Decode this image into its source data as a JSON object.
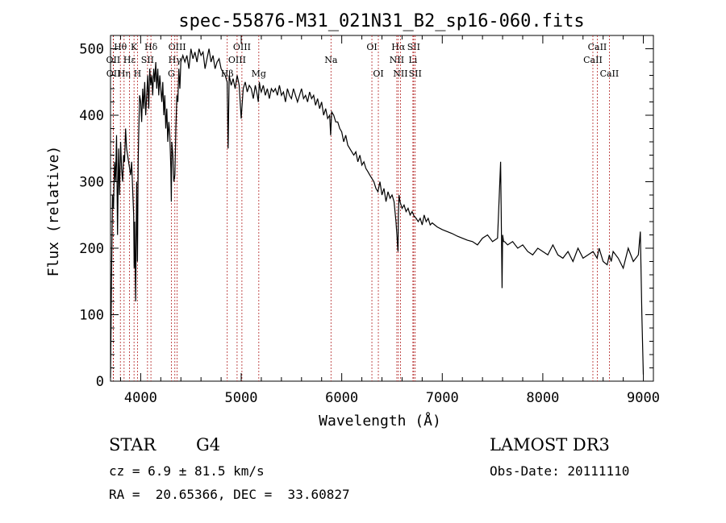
{
  "chart_data": {
    "type": "line",
    "title": "spec-55876-M31_021N31_B2_sp16-060.fits",
    "xlabel": "Wavelength (Å)",
    "ylabel": "Flux (relative)",
    "xlim": [
      3700,
      9100
    ],
    "ylim": [
      0,
      520
    ],
    "xticks": [
      4000,
      5000,
      6000,
      7000,
      8000,
      9000
    ],
    "yticks": [
      0,
      100,
      200,
      300,
      400,
      500
    ],
    "series": [
      {
        "name": "flux",
        "x": [
          3700,
          3710,
          3720,
          3730,
          3740,
          3750,
          3760,
          3770,
          3780,
          3790,
          3800,
          3810,
          3820,
          3830,
          3840,
          3850,
          3860,
          3870,
          3880,
          3890,
          3900,
          3910,
          3920,
          3930,
          3935,
          3940,
          3950,
          3960,
          3968,
          3975,
          3980,
          3990,
          4000,
          4010,
          4020,
          4030,
          4040,
          4050,
          4060,
          4070,
          4080,
          4090,
          4100,
          4110,
          4120,
          4130,
          4140,
          4150,
          4160,
          4170,
          4180,
          4190,
          4200,
          4210,
          4220,
          4230,
          4240,
          4250,
          4260,
          4270,
          4280,
          4290,
          4300,
          4305,
          4310,
          4320,
          4330,
          4340,
          4350,
          4360,
          4370,
          4380,
          4390,
          4400,
          4420,
          4440,
          4460,
          4480,
          4500,
          4520,
          4540,
          4560,
          4580,
          4600,
          4620,
          4640,
          4660,
          4680,
          4700,
          4720,
          4740,
          4760,
          4780,
          4800,
          4820,
          4840,
          4860,
          4870,
          4880,
          4900,
          4920,
          4940,
          4960,
          4980,
          5000,
          5020,
          5040,
          5060,
          5080,
          5100,
          5120,
          5140,
          5160,
          5170,
          5180,
          5190,
          5200,
          5220,
          5240,
          5260,
          5280,
          5300,
          5320,
          5340,
          5360,
          5380,
          5400,
          5420,
          5440,
          5460,
          5480,
          5500,
          5520,
          5540,
          5560,
          5580,
          5600,
          5620,
          5640,
          5660,
          5680,
          5700,
          5720,
          5740,
          5760,
          5780,
          5800,
          5820,
          5840,
          5860,
          5880,
          5890,
          5900,
          5920,
          5940,
          5960,
          5980,
          6000,
          6020,
          6040,
          6060,
          6080,
          6100,
          6120,
          6140,
          6160,
          6180,
          6200,
          6220,
          6240,
          6260,
          6280,
          6300,
          6320,
          6340,
          6360,
          6380,
          6400,
          6420,
          6440,
          6460,
          6480,
          6500,
          6520,
          6540,
          6560,
          6563,
          6570,
          6580,
          6600,
          6620,
          6640,
          6660,
          6680,
          6700,
          6720,
          6740,
          6760,
          6780,
          6800,
          6820,
          6840,
          6860,
          6880,
          6900,
          6950,
          7000,
          7050,
          7100,
          7150,
          7200,
          7250,
          7300,
          7350,
          7400,
          7450,
          7500,
          7550,
          7580,
          7595,
          7600,
          7610,
          7620,
          7650,
          7700,
          7750,
          7800,
          7850,
          7900,
          7950,
          8000,
          8050,
          8100,
          8150,
          8200,
          8250,
          8300,
          8350,
          8400,
          8450,
          8500,
          8540,
          8560,
          8600,
          8640,
          8662,
          8680,
          8700,
          8750,
          8800,
          8850,
          8900,
          8950,
          8970,
          8985,
          9000
        ],
        "values": [
          5,
          150,
          280,
          260,
          330,
          300,
          370,
          220,
          350,
          280,
          360,
          320,
          300,
          340,
          330,
          380,
          350,
          340,
          330,
          320,
          310,
          330,
          290,
          250,
          170,
          240,
          120,
          300,
          180,
          330,
          370,
          430,
          420,
          390,
          440,
          410,
          450,
          400,
          430,
          460,
          410,
          470,
          445,
          460,
          430,
          470,
          450,
          480,
          440,
          470,
          430,
          460,
          440,
          420,
          450,
          400,
          430,
          380,
          410,
          360,
          390,
          370,
          320,
          270,
          360,
          340,
          300,
          310,
          380,
          430,
          420,
          470,
          440,
          480,
          490,
          480,
          490,
          470,
          500,
          485,
          495,
          480,
          500,
          490,
          495,
          470,
          485,
          500,
          480,
          490,
          470,
          480,
          485,
          470,
          465,
          460,
          450,
          350,
          460,
          445,
          455,
          440,
          460,
          445,
          395,
          440,
          450,
          435,
          445,
          440,
          425,
          445,
          430,
          420,
          450,
          440,
          435,
          445,
          430,
          440,
          425,
          440,
          435,
          440,
          430,
          445,
          430,
          435,
          420,
          440,
          430,
          425,
          440,
          430,
          420,
          430,
          440,
          425,
          430,
          420,
          435,
          425,
          430,
          415,
          425,
          410,
          420,
          400,
          410,
          395,
          400,
          370,
          405,
          400,
          390,
          390,
          380,
          375,
          360,
          370,
          355,
          350,
          345,
          340,
          345,
          330,
          340,
          325,
          330,
          320,
          315,
          310,
          305,
          300,
          290,
          285,
          300,
          280,
          290,
          270,
          285,
          275,
          280,
          270,
          240,
          195,
          250,
          280,
          270,
          260,
          265,
          255,
          260,
          250,
          255,
          248,
          245,
          240,
          245,
          235,
          250,
          240,
          245,
          235,
          238,
          232,
          228,
          225,
          222,
          218,
          215,
          212,
          210,
          205,
          215,
          220,
          210,
          215,
          330,
          140,
          220,
          210,
          210,
          205,
          210,
          200,
          205,
          195,
          190,
          200,
          195,
          190,
          205,
          190,
          185,
          195,
          180,
          200,
          185,
          190,
          195,
          185,
          200,
          180,
          175,
          190,
          180,
          195,
          185,
          170,
          200,
          180,
          190,
          225,
          100,
          10
        ]
      }
    ],
    "lines": [
      {
        "label": "Hθ",
        "x": 3798,
        "row": 1
      },
      {
        "label": "OII",
        "x": 3727,
        "row": 2
      },
      {
        "label": "OII",
        "x": 3729,
        "row": 3
      },
      {
        "label": "Hη",
        "x": 3835,
        "row": 3
      },
      {
        "label": "K",
        "x": 3934,
        "row": 1
      },
      {
        "label": "Hε",
        "x": 3889,
        "row": 2
      },
      {
        "label": "H",
        "x": 3968,
        "row": 3
      },
      {
        "label": "SII",
        "x": 4068,
        "row": 2
      },
      {
        "label": "Hδ",
        "x": 4102,
        "row": 1
      },
      {
        "label": "OIII",
        "x": 4363,
        "row": 1
      },
      {
        "label": "Hγ",
        "x": 4340,
        "row": 2
      },
      {
        "label": "G",
        "x": 4305,
        "row": 3
      },
      {
        "label": "OIII",
        "x": 5007,
        "row": 1
      },
      {
        "label": "OIII",
        "x": 4959,
        "row": 2
      },
      {
        "label": "Hβ",
        "x": 4861,
        "row": 3
      },
      {
        "label": "Mg",
        "x": 5175,
        "row": 3
      },
      {
        "label": "Na",
        "x": 5893,
        "row": 2
      },
      {
        "label": "OI",
        "x": 6300,
        "row": 1
      },
      {
        "label": "OI",
        "x": 6364,
        "row": 3
      },
      {
        "label": "Hα",
        "x": 6563,
        "row": 1
      },
      {
        "label": "NII",
        "x": 6548,
        "row": 2
      },
      {
        "label": "NII",
        "x": 6584,
        "row": 3
      },
      {
        "label": "SII",
        "x": 6716,
        "row": 1
      },
      {
        "label": "Li",
        "x": 6708,
        "row": 2
      },
      {
        "label": "SII",
        "x": 6731,
        "row": 3
      },
      {
        "label": "CaII",
        "x": 8542,
        "row": 1
      },
      {
        "label": "CaII",
        "x": 8498,
        "row": 2
      },
      {
        "label": "CaII",
        "x": 8662,
        "row": 3
      }
    ]
  },
  "info": {
    "class": "STAR",
    "subclass": "G4",
    "survey": "LAMOST DR3",
    "cz": "cz = 6.9 ± 81.5 km/s",
    "obs_date": "Obs-Date: 20111110",
    "coords": "RA =  20.65366, DEC =  33.60827"
  },
  "colors": {
    "line": "#000000",
    "marker": "#b22222",
    "axis": "#000000"
  }
}
